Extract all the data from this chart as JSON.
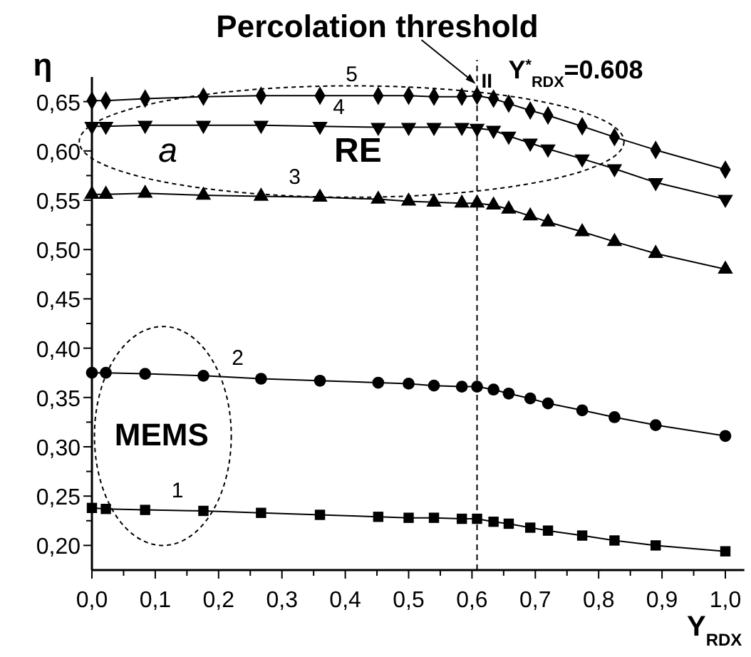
{
  "chart_data": {
    "type": "line",
    "xlabel": "Y$_{RDX}$",
    "ylabel": "η",
    "x": [
      0,
      0.022,
      0.084,
      0.176,
      0.267,
      0.36,
      0.452,
      0.5,
      0.54,
      0.584,
      0.608,
      0.634,
      0.658,
      0.692,
      0.72,
      0.774,
      0.825,
      0.89,
      1.0
    ],
    "series": [
      {
        "name": "1",
        "color": "#000000",
        "marker": "square",
        "values": [
          0.238,
          0.237,
          0.236,
          0.235,
          0.233,
          0.231,
          0.229,
          0.228,
          0.228,
          0.227,
          0.227,
          0.224,
          0.222,
          0.218,
          0.215,
          0.21,
          0.205,
          0.2,
          0.194
        ]
      },
      {
        "name": "2",
        "color": "#000000",
        "marker": "circle",
        "values": [
          0.375,
          0.375,
          0.374,
          0.372,
          0.369,
          0.367,
          0.365,
          0.364,
          0.362,
          0.361,
          0.361,
          0.358,
          0.354,
          0.349,
          0.344,
          0.337,
          0.33,
          0.322,
          0.311
        ]
      },
      {
        "name": "3",
        "color": "#000000",
        "marker": "triangle",
        "values": [
          0.556,
          0.556,
          0.557,
          0.555,
          0.554,
          0.553,
          0.551,
          0.549,
          0.548,
          0.547,
          0.547,
          0.545,
          0.541,
          0.534,
          0.528,
          0.518,
          0.508,
          0.496,
          0.48
        ]
      },
      {
        "name": "4",
        "color": "#000000",
        "marker": "triangle-down",
        "values": [
          0.625,
          0.625,
          0.626,
          0.626,
          0.626,
          0.625,
          0.624,
          0.624,
          0.624,
          0.624,
          0.623,
          0.621,
          0.615,
          0.608,
          0.602,
          0.592,
          0.582,
          0.568,
          0.551
        ]
      },
      {
        "name": "5",
        "color": "#000000",
        "marker": "diamond",
        "values": [
          0.651,
          0.651,
          0.653,
          0.655,
          0.656,
          0.656,
          0.656,
          0.656,
          0.655,
          0.655,
          0.656,
          0.653,
          0.648,
          0.641,
          0.636,
          0.625,
          0.614,
          0.601,
          0.581
        ]
      }
    ],
    "xlim": [
      0,
      1.03
    ],
    "xticks": [
      {
        "value": 0,
        "label": "0,0"
      },
      {
        "value": 0.05,
        "label": null
      },
      {
        "value": 0.1,
        "label": "0,1"
      },
      {
        "value": 0.15,
        "label": null
      },
      {
        "value": 0.2,
        "label": "0,2"
      },
      {
        "value": 0.25,
        "label": null
      },
      {
        "value": 0.3,
        "label": "0,3"
      },
      {
        "value": 0.35,
        "label": null
      },
      {
        "value": 0.4,
        "label": "0,4"
      },
      {
        "value": 0.45,
        "label": null
      },
      {
        "value": 0.5,
        "label": "0,5"
      },
      {
        "value": 0.55,
        "label": null
      },
      {
        "value": 0.6,
        "label": "0,6"
      },
      {
        "value": 0.65,
        "label": null
      },
      {
        "value": 0.7,
        "label": "0,7"
      },
      {
        "value": 0.75,
        "label": null
      },
      {
        "value": 0.8,
        "label": "0,8"
      },
      {
        "value": 0.85,
        "label": null
      },
      {
        "value": 0.9,
        "label": "0,9"
      },
      {
        "value": 0.95,
        "label": null
      },
      {
        "value": 1.0,
        "label": "1,0"
      }
    ],
    "ylim": [
      0.175,
      0.675
    ],
    "yticks": [
      {
        "value": 0.2,
        "label": "0,20"
      },
      {
        "value": 0.225,
        "label": null
      },
      {
        "value": 0.25,
        "label": "0,25"
      },
      {
        "value": 0.275,
        "label": null
      },
      {
        "value": 0.3,
        "label": "0,30"
      },
      {
        "value": 0.325,
        "label": null
      },
      {
        "value": 0.35,
        "label": "0,35"
      },
      {
        "value": 0.375,
        "label": null
      },
      {
        "value": 0.4,
        "label": "0,40"
      },
      {
        "value": 0.425,
        "label": null
      },
      {
        "value": 0.45,
        "label": "0,45"
      },
      {
        "value": 0.475,
        "label": null
      },
      {
        "value": 0.5,
        "label": "0,50"
      },
      {
        "value": 0.525,
        "label": null
      },
      {
        "value": 0.55,
        "label": "0,55"
      },
      {
        "value": 0.575,
        "label": null
      },
      {
        "value": 0.6,
        "label": "0,60"
      },
      {
        "value": 0.625,
        "label": null
      },
      {
        "value": 0.65,
        "label": "0,65"
      }
    ],
    "grid": false,
    "ref_lines": [
      {
        "axis": "x",
        "value": 0.608,
        "label": "Y$^{*}$$_{RDX}$=0.608",
        "line_style": "dashed"
      }
    ],
    "annotations": [
      {
        "text": "Percolation threshold",
        "x": 0.608,
        "y": 0.665
      },
      {
        "text": "II",
        "x": 0.608,
        "y": 0.676
      },
      "a",
      "RE",
      "MEMS"
    ]
  }
}
